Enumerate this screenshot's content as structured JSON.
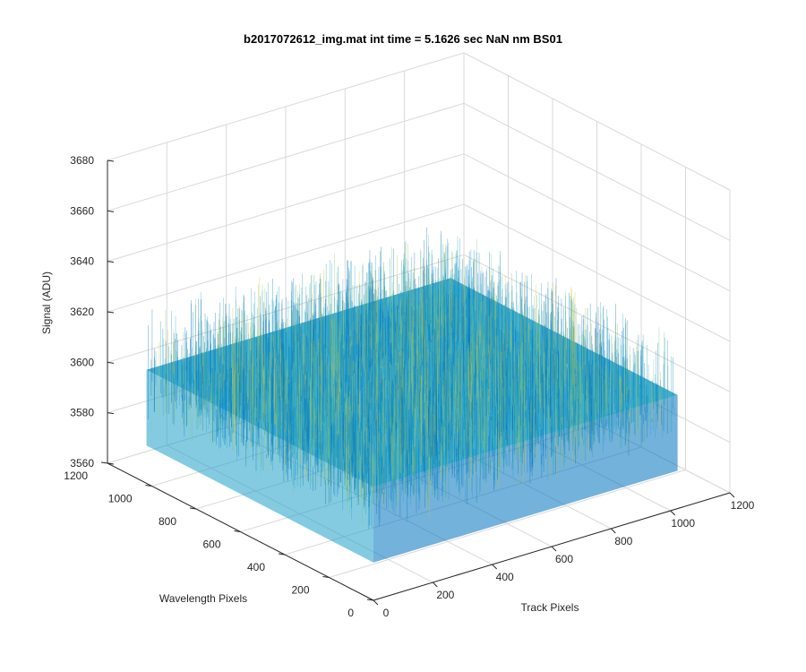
{
  "chart_data": {
    "type": "surface",
    "title": "b2017072612_img.mat int time = 5.1626 sec  NaN nm BS01",
    "xlabel": "Track Pixels",
    "ylabel": "Wavelength Pixels",
    "zlabel": "Signal (ADU)",
    "xlim": [
      0,
      1200
    ],
    "ylim": [
      0,
      1200
    ],
    "zlim": [
      3560,
      3680
    ],
    "xticks": [
      "0",
      "200",
      "400",
      "600",
      "800",
      "1000",
      "1200"
    ],
    "yticks": [
      "0",
      "200",
      "400",
      "600",
      "800",
      "1000",
      "1200"
    ],
    "zticks": [
      "3560",
      "3580",
      "3600",
      "3620",
      "3640",
      "3660",
      "3680"
    ],
    "data_extent": {
      "x": [
        0,
        1024
      ],
      "y": [
        0,
        1024
      ]
    },
    "signal_mean": 3605,
    "signal_range": [
      3575,
      3640
    ],
    "grid": true,
    "colormap": "parula",
    "colors": {
      "low": "#0072bd",
      "mid": "#1fa0c8",
      "high": "#7ec27a",
      "peak": "#c8c23a"
    }
  }
}
